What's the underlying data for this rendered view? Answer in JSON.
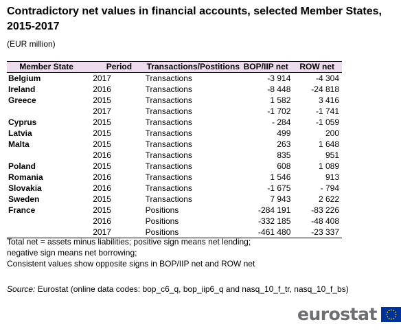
{
  "title": "Contradictory net values in financial accounts, selected Member States, 2015-2017",
  "unit": "(EUR million)",
  "table": {
    "headers": [
      "Member State",
      "Period",
      "Transactions/Postitions",
      "BOP/IIP net",
      "ROW net"
    ],
    "rows": [
      [
        "Belgium",
        "2017",
        "Transactions",
        "-3 914",
        "-4 304"
      ],
      [
        "Ireland",
        "2016",
        "Transactions",
        "-8 448",
        "-24 818"
      ],
      [
        "Greece",
        "2015",
        "Transactions",
        "1 582",
        "3 416"
      ],
      [
        "",
        "2017",
        "Transactions",
        "-1 702",
        "-1 741"
      ],
      [
        "Cyprus",
        "2015",
        "Transactions",
        "- 284",
        "-1 059"
      ],
      [
        "Latvia",
        "2015",
        "Transactions",
        "499",
        "200"
      ],
      [
        "Malta",
        "2015",
        "Transactions",
        "263",
        "1 648"
      ],
      [
        "",
        "2016",
        "Transactions",
        "835",
        "951"
      ],
      [
        "Poland",
        "2015",
        "Transactions",
        "608",
        "1 089"
      ],
      [
        "Romania",
        "2016",
        "Transactions",
        "1 546",
        "913"
      ],
      [
        "Slovakia",
        "2016",
        "Transactions",
        "-1 675",
        "- 794"
      ],
      [
        "Sweden",
        "2015",
        "Transactions",
        "7 943",
        "2 622"
      ],
      [
        "France",
        "2015",
        "Positions",
        "-284 191",
        "-83 226"
      ],
      [
        "",
        "2016",
        "Positions",
        "-332 185",
        "-48 408"
      ],
      [
        "",
        "2017",
        "Positions",
        "-461 480",
        "-23 337"
      ]
    ]
  },
  "notes": [
    "Total net = assets minus liabilities; positive sign means net lending;",
    "negative sign means net borrowing;",
    "Consistent values show opposite signs in BOP/IIP net and ROW net"
  ],
  "source": {
    "label": "Source:",
    "text": " Eurostat (online data codes: bop_c6_q, bop_iip6_q and nasq_10_f_tr, nasq_10_f_bs)"
  },
  "logo": {
    "text": "eurostat",
    "color": "#6d6e71",
    "flag_color": "#003399",
    "star_color": "#ffcc00"
  }
}
